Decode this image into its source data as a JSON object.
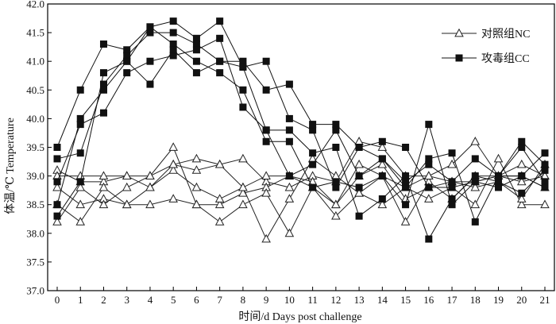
{
  "chart_data": {
    "type": "line",
    "xlabel": "时间/d  Days post challenge",
    "ylabel": "体温/℃  Temperature",
    "ylim": [
      37.0,
      42.0
    ],
    "xlim": [
      0,
      21
    ],
    "x": [
      0,
      1,
      2,
      3,
      4,
      5,
      6,
      7,
      8,
      9,
      10,
      11,
      12,
      13,
      14,
      15,
      16,
      17,
      18,
      19,
      20,
      21
    ],
    "yticks": [
      "37.0",
      "37.5",
      "38.0",
      "38.5",
      "39.0",
      "39.5",
      "40.0",
      "40.5",
      "41.0",
      "41.5",
      "42.0"
    ],
    "xticks": [
      "0",
      "1",
      "2",
      "3",
      "4",
      "5",
      "6",
      "7",
      "8",
      "9",
      "10",
      "11",
      "12",
      "13",
      "14",
      "15",
      "16",
      "17",
      "18",
      "19",
      "20",
      "21"
    ],
    "grid": false,
    "legend_position": "top-right",
    "legend": [
      {
        "label": "对照组NC",
        "marker": "open-triangle"
      },
      {
        "label": "攻毒组CC",
        "marker": "filled-square"
      }
    ],
    "groups": [
      {
        "label": "对照组NC",
        "marker": "open-triangle",
        "color": "#222222",
        "series": [
          {
            "values": [
              39.1,
              38.9,
              38.9,
              39.0,
              39.0,
              39.2,
              39.3,
              39.2,
              39.3,
              38.9,
              38.8,
              39.0,
              38.9,
              39.6,
              39.5,
              39.0,
              39.0,
              39.2,
              39.6,
              39.0,
              39.0,
              38.8
            ]
          },
          {
            "values": [
              38.8,
              38.5,
              38.6,
              38.5,
              38.5,
              38.6,
              38.5,
              38.5,
              38.7,
              38.8,
              39.0,
              38.8,
              38.3,
              38.7,
              38.5,
              38.8,
              38.6,
              38.8,
              38.5,
              39.3,
              38.5,
              38.5
            ]
          },
          {
            "values": [
              38.5,
              38.2,
              38.8,
              38.5,
              38.8,
              39.1,
              38.8,
              38.6,
              38.8,
              37.9,
              38.6,
              39.3,
              39.0,
              38.7,
              39.0,
              38.2,
              38.9,
              38.6,
              39.0,
              39.0,
              38.9,
              39.0
            ]
          },
          {
            "values": [
              38.2,
              38.8,
              38.5,
              38.8,
              39.0,
              39.5,
              38.5,
              38.2,
              38.5,
              38.7,
              38.0,
              38.8,
              38.5,
              39.2,
              39.0,
              38.8,
              39.0,
              38.9,
              38.9,
              39.0,
              39.2,
              39.0
            ]
          },
          {
            "values": [
              39.0,
              39.0,
              39.0,
              39.0,
              38.8,
              39.2,
              39.1,
              39.2,
              38.8,
              39.0,
              39.0,
              38.9,
              38.5,
              39.0,
              39.2,
              38.6,
              38.8,
              38.9,
              38.8,
              38.9,
              38.6,
              39.2
            ]
          }
        ]
      },
      {
        "label": "攻毒组CC",
        "marker": "filled-square",
        "color": "#111111",
        "series": [
          {
            "values": [
              39.5,
              40.5,
              41.3,
              41.2,
              41.6,
              41.7,
              41.4,
              41.7,
              40.9,
              41.0,
              40.0,
              39.8,
              38.8,
              39.5,
              39.6,
              39.5,
              38.8,
              38.8,
              38.9,
              39.0,
              39.6,
              39.2
            ]
          },
          {
            "values": [
              39.3,
              39.4,
              40.6,
              41.1,
              41.5,
              41.5,
              41.3,
              41.0,
              41.0,
              40.5,
              40.6,
              39.9,
              39.9,
              39.5,
              39.3,
              38.8,
              39.3,
              39.4,
              38.2,
              39.0,
              39.5,
              38.9
            ]
          },
          {
            "values": [
              38.9,
              39.9,
              40.1,
              40.8,
              41.0,
              41.1,
              41.2,
              41.4,
              40.2,
              39.8,
              39.8,
              39.4,
              39.5,
              38.3,
              38.6,
              39.0,
              37.9,
              38.6,
              39.0,
              38.9,
              38.7,
              39.1
            ]
          },
          {
            "values": [
              38.5,
              40.0,
              40.5,
              41.0,
              41.6,
              41.3,
              41.0,
              40.8,
              40.5,
              39.6,
              39.6,
              38.8,
              38.9,
              38.8,
              39.0,
              38.5,
              39.9,
              38.5,
              38.9,
              38.8,
              39.0,
              38.8
            ]
          },
          {
            "values": [
              38.3,
              38.9,
              40.8,
              41.0,
              40.6,
              41.2,
              40.8,
              41.0,
              40.9,
              39.8,
              39.0,
              39.2,
              39.8,
              39.0,
              39.3,
              38.9,
              39.2,
              38.9,
              39.3,
              39.0,
              39.0,
              39.4
            ]
          }
        ]
      }
    ]
  }
}
